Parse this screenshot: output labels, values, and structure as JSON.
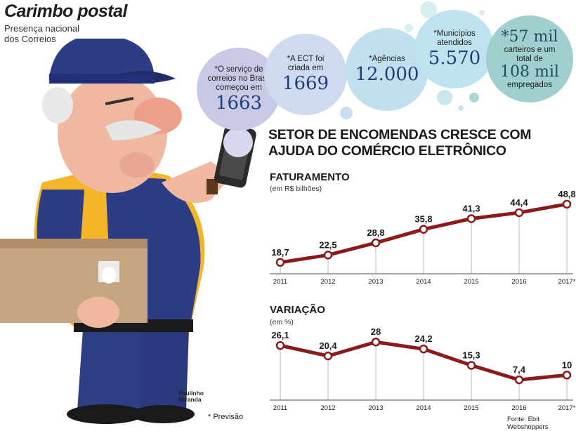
{
  "header": {
    "title": "Carimbo postal",
    "subtitle": "Presença nacional dos Correios"
  },
  "bubbles": [
    {
      "text": "*O serviço de correios no Brasil começou em",
      "value": "1663"
    },
    {
      "text": "*A ECT foi criada em",
      "value": "1669"
    },
    {
      "text": "*Agências",
      "value": "12.000"
    },
    {
      "text": "*Municípios atendidos",
      "value": "5.570"
    },
    {
      "text_top": "*57 mil",
      "text": "carteiros e um total de",
      "value": "108 mil",
      "text_bottom": "empregados"
    }
  ],
  "headline": "SETOR DE ENCOMENDAS CRESCE COM AJUDA DO COMÉRCIO ELETRÔNICO",
  "chart_data": [
    {
      "type": "line",
      "title": "FATURAMENTO",
      "ylabel": "(em R$ bilhões)",
      "categories": [
        "2011",
        "2012",
        "2013",
        "2014",
        "2015",
        "2016",
        "2017*"
      ],
      "values": [
        18.7,
        22.5,
        28.8,
        35.8,
        41.3,
        44.4,
        48.8
      ],
      "labels": [
        "18,7",
        "22,5",
        "28,8",
        "35,8",
        "41,3",
        "44,4",
        "48,8"
      ],
      "color": "#8b1a1a"
    },
    {
      "type": "line",
      "title": "VARIAÇÃO",
      "ylabel": "(em %)",
      "categories": [
        "2011",
        "2012",
        "2013",
        "2014",
        "2015",
        "2016",
        "2017*"
      ],
      "values": [
        26.1,
        20.4,
        28,
        24.2,
        15.3,
        7.4,
        10
      ],
      "labels": [
        "26,1",
        "20,4",
        "28",
        "24,2",
        "15,3",
        "7,4",
        "10"
      ],
      "color": "#8b1a1a"
    }
  ],
  "footnote": "* Previsão",
  "source": "Fonte: Ebit Webshoppers",
  "credit": [
    "Paulinho",
    "Miranda"
  ],
  "colors": {
    "line": "#8b1a1a",
    "number_blue": "#1f3f78",
    "bubble_purple": "#c8c9e6",
    "bubble_blue": "#bfe0ee",
    "bubble_teal": "#9fcfcf"
  }
}
